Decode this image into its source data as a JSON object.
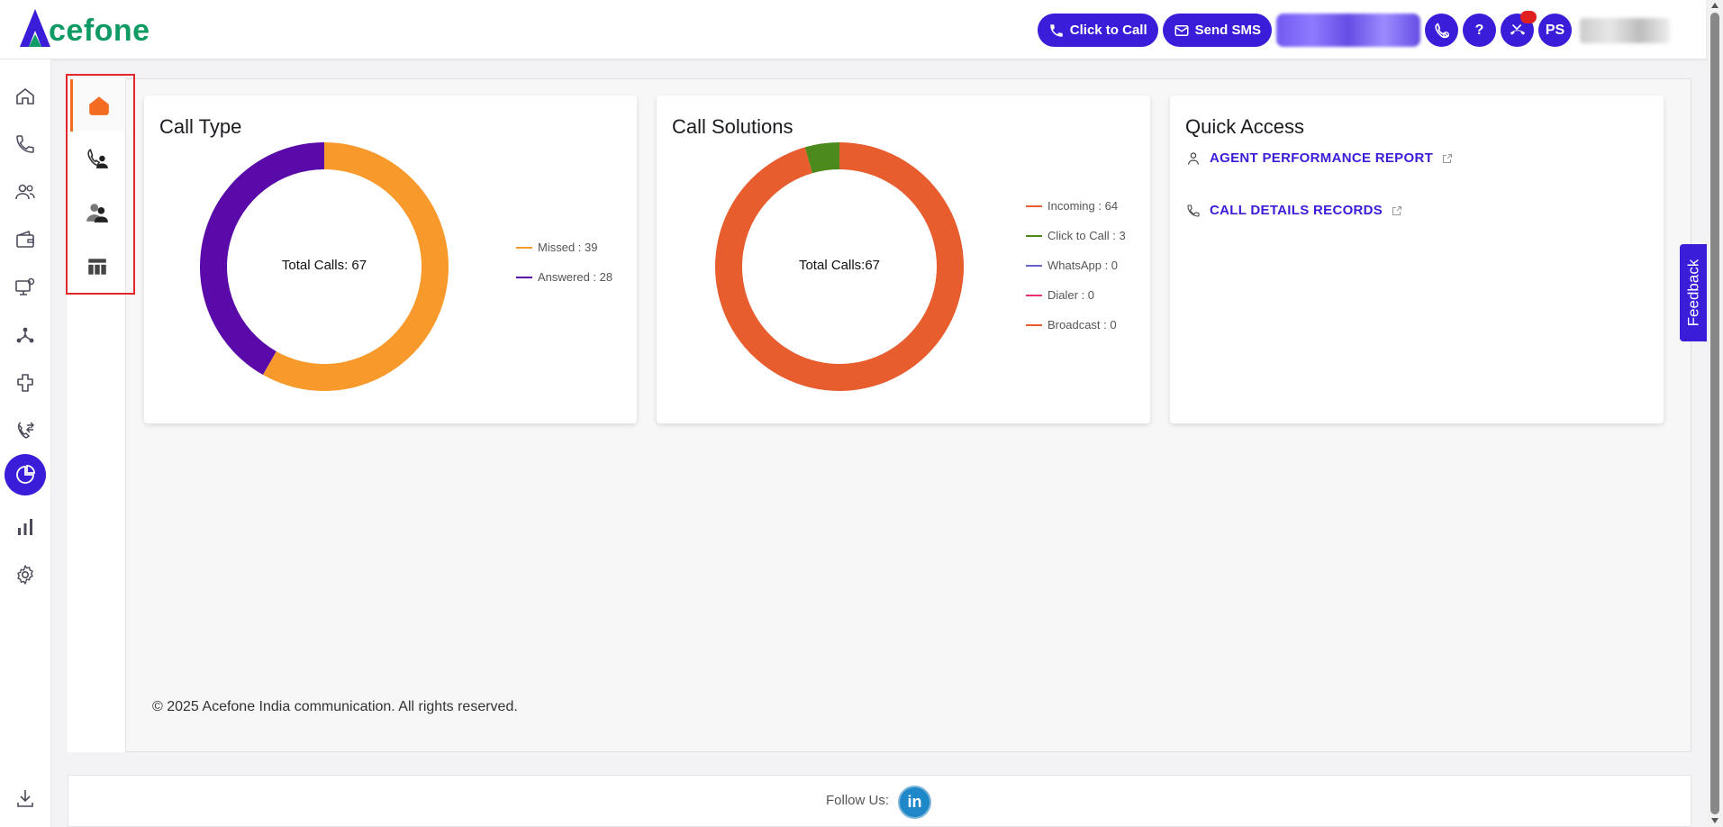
{
  "app": {
    "logo_text": "cefone",
    "logo_letter": "A"
  },
  "header": {
    "click_to_call_label": "Click to Call",
    "send_sms_label": "Send SMS",
    "help_label": "?",
    "avatar_initials": "PS"
  },
  "sidebar": {
    "items": [
      {
        "icon": "home-icon"
      },
      {
        "icon": "phone-icon"
      },
      {
        "icon": "users-icon"
      },
      {
        "icon": "wallet-icon"
      },
      {
        "icon": "monitor-settings-icon"
      },
      {
        "icon": "network-icon"
      },
      {
        "icon": "integration-icon"
      },
      {
        "icon": "call-transfer-icon"
      },
      {
        "icon": "pie-chart-icon",
        "active": true
      },
      {
        "icon": "bar-chart-icon"
      },
      {
        "icon": "gear-icon"
      },
      {
        "icon": "download-icon"
      }
    ]
  },
  "subnav": {
    "items": [
      {
        "icon": "home-icon",
        "active": true
      },
      {
        "icon": "phone-agent-icon"
      },
      {
        "icon": "users-group-icon"
      },
      {
        "icon": "table-icon"
      }
    ]
  },
  "cards": {
    "call_type": {
      "title": "Call Type",
      "center": "Total Calls: 67",
      "legend": [
        {
          "label": "Missed : 39",
          "color": "#f89a2b"
        },
        {
          "label": "Answered : 28",
          "color": "#5a0aa8"
        }
      ]
    },
    "call_solutions": {
      "title": "Call Solutions",
      "center": "Total Calls:67",
      "legend": [
        {
          "label": "Incoming : 64",
          "color": "#e85d2e"
        },
        {
          "label": "Click to Call : 3",
          "color": "#4c8a1e"
        },
        {
          "label": "WhatsApp : 0",
          "color": "#6a63c8"
        },
        {
          "label": "Dialer : 0",
          "color": "#e8336a"
        },
        {
          "label": "Broadcast : 0",
          "color": "#e85d2e"
        }
      ]
    },
    "quick_access": {
      "title": "Quick Access",
      "links": [
        {
          "label": "AGENT PERFORMANCE REPORT",
          "icon": "user-icon"
        },
        {
          "label": "CALL DETAILS RECORDS",
          "icon": "phone-icon"
        }
      ]
    }
  },
  "chart_data": [
    {
      "type": "pie",
      "title": "Call Type",
      "categories": [
        "Missed",
        "Answered"
      ],
      "values": [
        39,
        28
      ],
      "colors": [
        "#f89a2b",
        "#5a0aa8"
      ],
      "legend": "right"
    },
    {
      "type": "pie",
      "title": "Call Solutions",
      "categories": [
        "Incoming",
        "Click to Call",
        "WhatsApp",
        "Dialer",
        "Broadcast"
      ],
      "values": [
        64,
        3,
        0,
        0,
        0
      ],
      "colors": [
        "#e85d2e",
        "#4c8a1e",
        "#6a63c8",
        "#e8336a",
        "#e85d2e"
      ],
      "legend": "right"
    }
  ],
  "footer": {
    "copyright": "© 2025 Acefone India communication. All rights reserved.",
    "follow_label": "Follow Us:",
    "linkedin_label": "in"
  },
  "feedback": {
    "label": "Feedback"
  },
  "colors": {
    "brand": "#3a1dd8",
    "accent": "#f36c21"
  }
}
